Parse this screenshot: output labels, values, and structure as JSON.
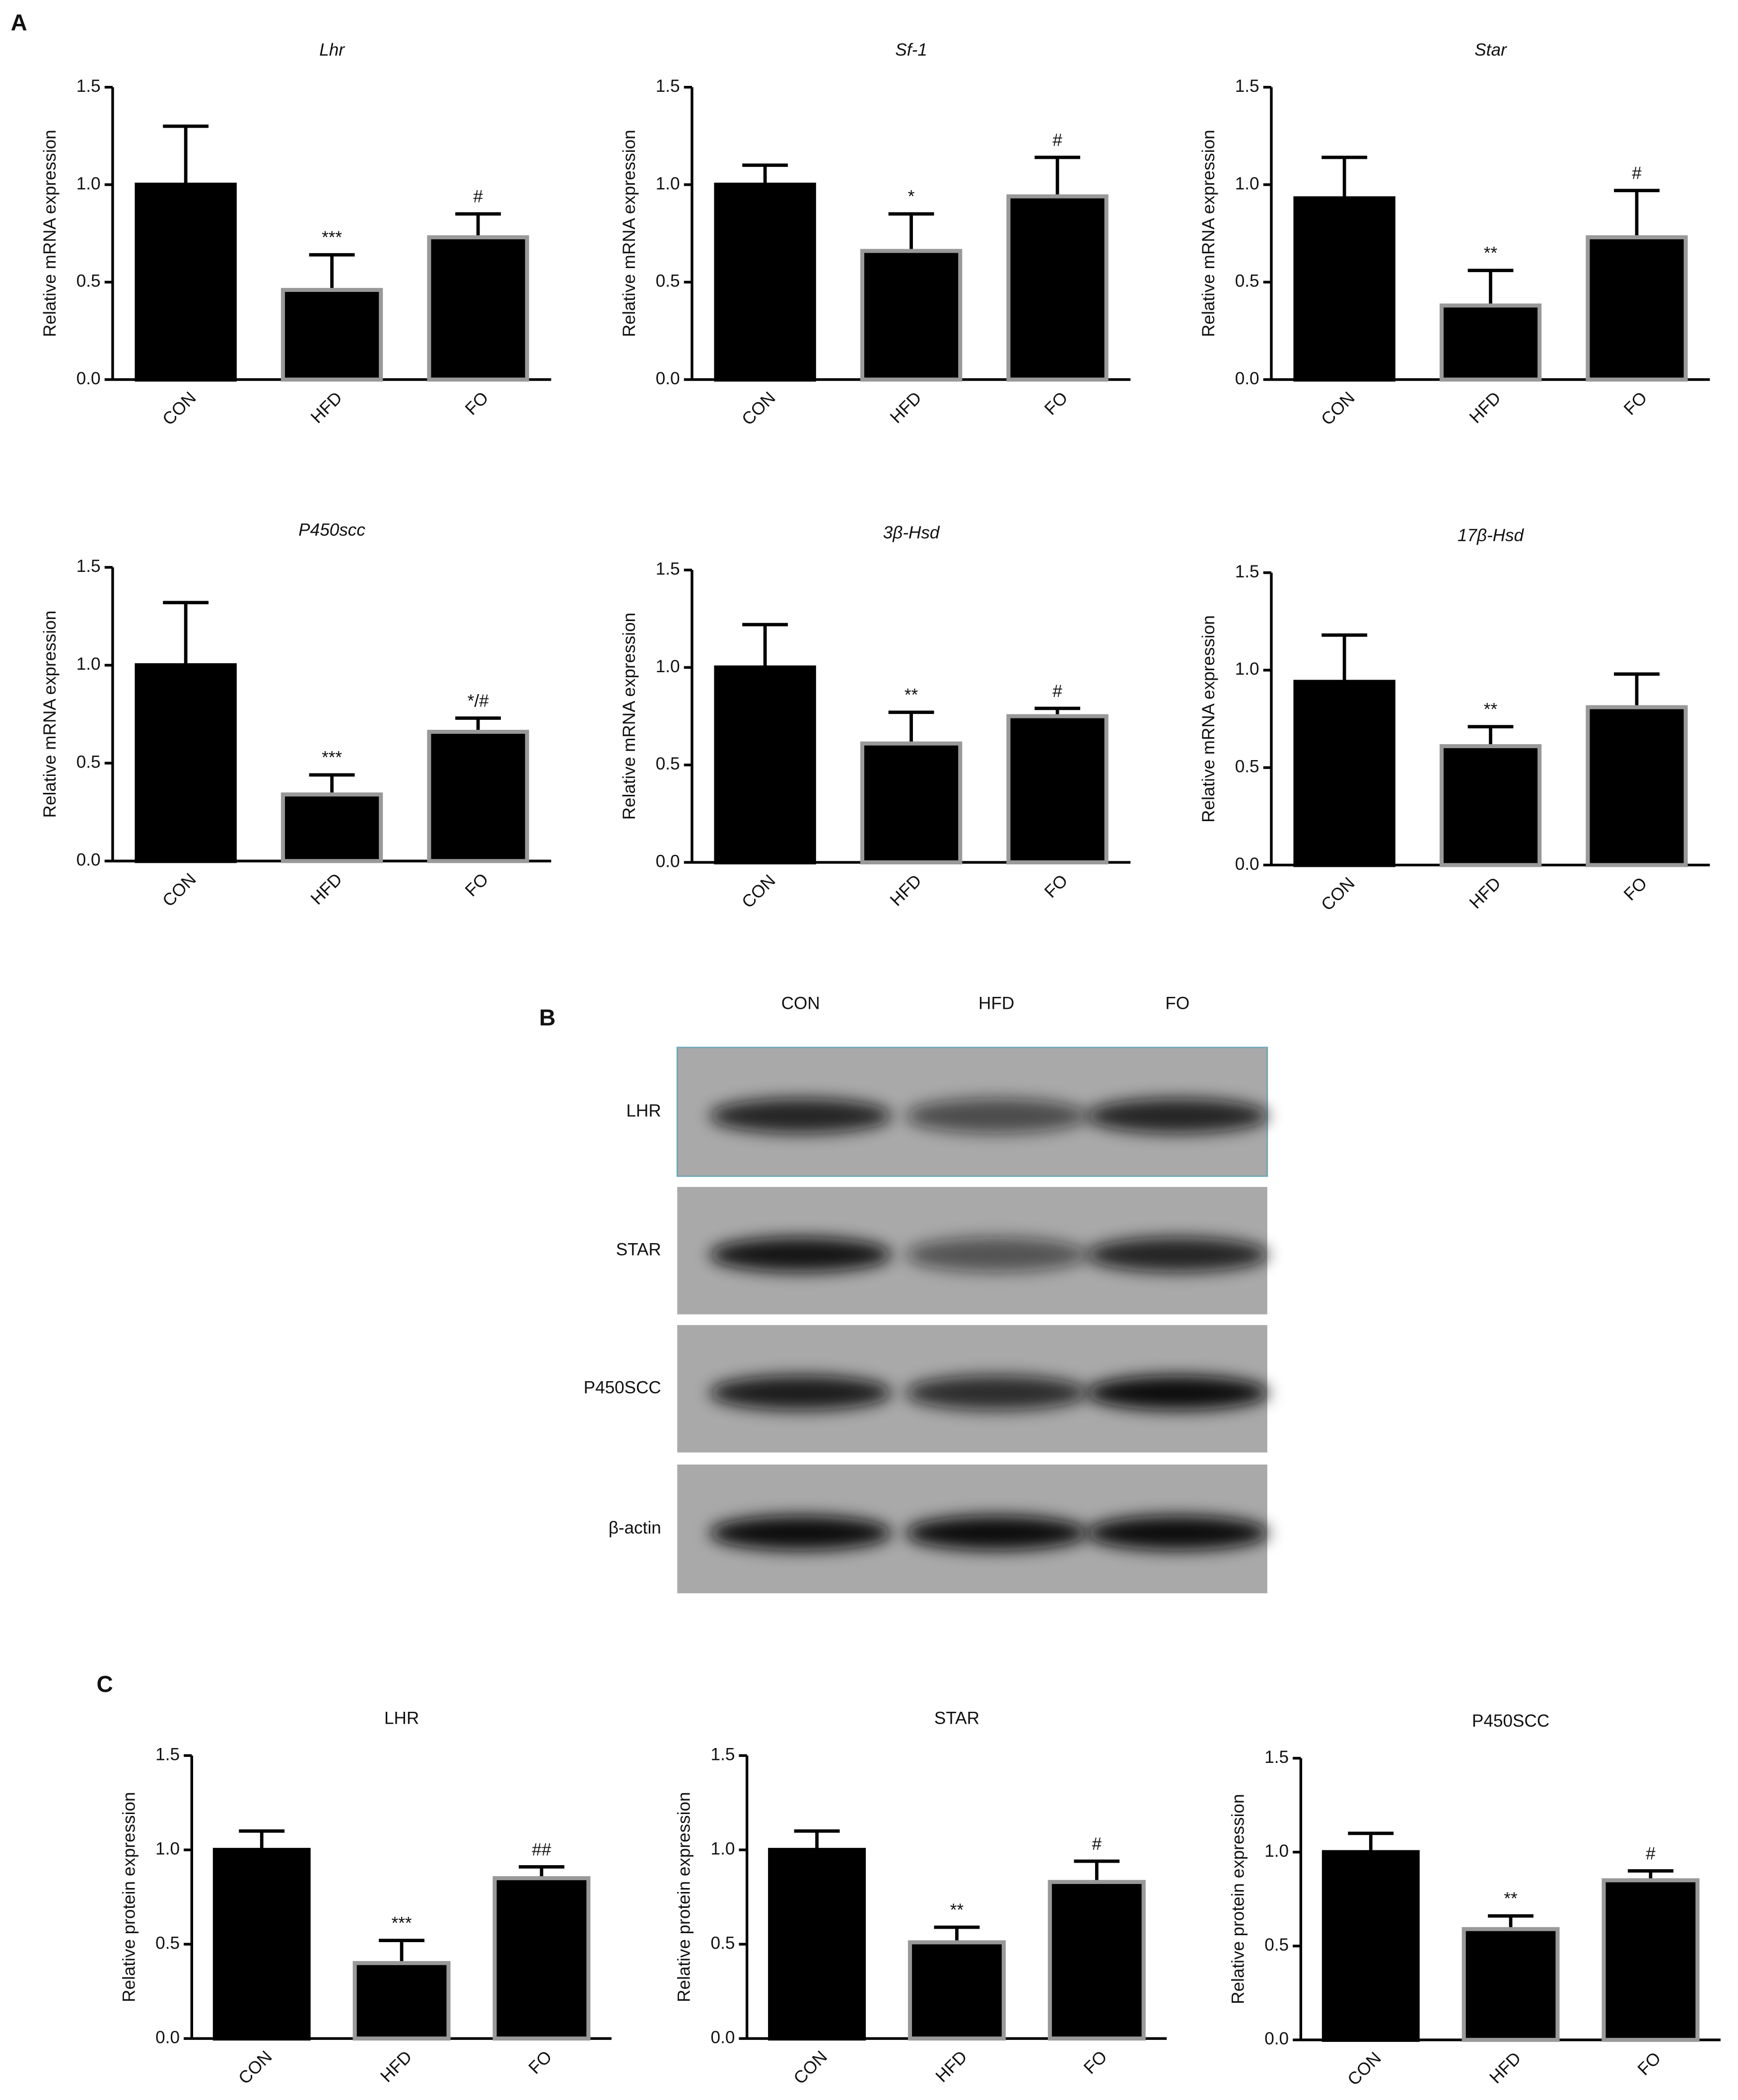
{
  "panels": [
    "A",
    "B",
    "C"
  ],
  "blot": {
    "lanes": [
      "CON",
      "HFD",
      "FO"
    ],
    "proteins": [
      "LHR",
      "STAR",
      "P450SCC",
      "β-actin"
    ]
  },
  "chart_data": [
    {
      "type": "bar",
      "title": "Lhr",
      "title_style": "italic",
      "ylabel": "Relative mRNA expression",
      "categories": [
        "CON",
        "HFD",
        "FO"
      ],
      "values": [
        1.0,
        0.46,
        0.73
      ],
      "errors": [
        0.3,
        0.18,
        0.12
      ],
      "annotations": [
        null,
        "***",
        "#"
      ],
      "color": "#000000",
      "edgecolors": [
        "#000000",
        "#999999",
        "#999999"
      ],
      "ylim": [
        0,
        1.5
      ],
      "yticks": [
        {
          "value": 0,
          "label": "0.0"
        },
        0.5,
        {
          "value": 1,
          "label": "1.0"
        },
        1.5
      ]
    },
    {
      "type": "bar",
      "title": "Sf-1",
      "title_style": "italic",
      "ylabel": "Relative mRNA expression",
      "categories": [
        "CON",
        "HFD",
        "FO"
      ],
      "values": [
        1.0,
        0.66,
        0.94
      ],
      "errors": [
        0.1,
        0.19,
        0.2
      ],
      "annotations": [
        null,
        "*",
        "#"
      ],
      "color": "#000000",
      "edgecolors": [
        "#000000",
        "#999999",
        "#999999"
      ],
      "ylim": [
        0,
        1.5
      ],
      "yticks": [
        {
          "value": 0,
          "label": "0.0"
        },
        0.5,
        {
          "value": 1,
          "label": "1.0"
        },
        1.5
      ]
    },
    {
      "type": "bar",
      "title": "Star",
      "title_style": "italic",
      "ylabel": "Relative mRNA expression",
      "categories": [
        "CON",
        "HFD",
        "FO"
      ],
      "values": [
        0.93,
        0.38,
        0.73
      ],
      "errors": [
        0.21,
        0.18,
        0.24
      ],
      "annotations": [
        null,
        "**",
        "#"
      ],
      "color": "#000000",
      "edgecolors": [
        "#000000",
        "#999999",
        "#999999"
      ],
      "ylim": [
        0,
        1.5
      ],
      "yticks": [
        {
          "value": 0,
          "label": "0.0"
        },
        0.5,
        {
          "value": 1,
          "label": "1.0"
        },
        1.5
      ]
    },
    {
      "type": "bar",
      "title": "P450scc",
      "title_style": "italic",
      "ylabel": "Relative mRNA expression",
      "categories": [
        "CON",
        "HFD",
        "FO"
      ],
      "values": [
        1.0,
        0.34,
        0.66
      ],
      "errors": [
        0.32,
        0.1,
        0.07
      ],
      "annotations": [
        null,
        "***",
        "*/#"
      ],
      "color": "#000000",
      "edgecolors": [
        "#000000",
        "#999999",
        "#999999"
      ],
      "ylim": [
        0,
        1.5
      ],
      "yticks": [
        {
          "value": 0,
          "label": "0.0"
        },
        0.5,
        {
          "value": 1,
          "label": "1.0"
        },
        1.5
      ]
    },
    {
      "type": "bar",
      "title": "3β-Hsd",
      "title_style": "italic",
      "ylabel": "Relative mRNA expression",
      "categories": [
        "CON",
        "HFD",
        "FO"
      ],
      "values": [
        1.0,
        0.61,
        0.75
      ],
      "errors": [
        0.22,
        0.16,
        0.04
      ],
      "annotations": [
        null,
        "**",
        "#"
      ],
      "color": "#000000",
      "edgecolors": [
        "#000000",
        "#999999",
        "#999999"
      ],
      "ylim": [
        0,
        1.5
      ],
      "yticks": [
        {
          "value": 0,
          "label": "0.0"
        },
        0.5,
        {
          "value": 1,
          "label": "1.0"
        },
        1.5
      ]
    },
    {
      "type": "bar",
      "title": "17β-Hsd",
      "title_style": "italic",
      "ylabel": "Relative mRNA expression",
      "categories": [
        "CON",
        "HFD",
        "FO"
      ],
      "values": [
        0.94,
        0.61,
        0.81
      ],
      "errors": [
        0.24,
        0.1,
        0.17
      ],
      "annotations": [
        null,
        "**",
        null
      ],
      "color": "#000000",
      "edgecolors": [
        "#000000",
        "#999999",
        "#999999"
      ],
      "ylim": [
        0,
        1.5
      ],
      "yticks": [
        {
          "value": 0,
          "label": "0.0"
        },
        0.5,
        {
          "value": 1,
          "label": "1.0"
        },
        1.5
      ]
    },
    {
      "type": "bar",
      "title": "LHR",
      "title_style": "normal",
      "ylabel": "Relative protein expression",
      "categories": [
        "CON",
        "HFD",
        "FO"
      ],
      "values": [
        1.0,
        0.4,
        0.85
      ],
      "errors": [
        0.1,
        0.12,
        0.06
      ],
      "annotations": [
        null,
        "***",
        "##"
      ],
      "color": "#000000",
      "edgecolors": [
        "#000000",
        "#999999",
        "#999999"
      ],
      "ylim": [
        0,
        1.5
      ],
      "yticks": [
        {
          "value": 0,
          "label": "0.0"
        },
        0.5,
        {
          "value": 1,
          "label": "1.0"
        },
        1.5
      ]
    },
    {
      "type": "bar",
      "title": "STAR",
      "title_style": "normal",
      "ylabel": "Relative protein expression",
      "categories": [
        "CON",
        "HFD",
        "FO"
      ],
      "values": [
        1.0,
        0.51,
        0.83
      ],
      "errors": [
        0.1,
        0.08,
        0.11
      ],
      "annotations": [
        null,
        "**",
        "#"
      ],
      "color": "#000000",
      "edgecolors": [
        "#000000",
        "#999999",
        "#999999"
      ],
      "ylim": [
        0,
        1.5
      ],
      "yticks": [
        {
          "value": 0,
          "label": "0.0"
        },
        0.5,
        {
          "value": 1,
          "label": "1.0"
        },
        1.5
      ]
    },
    {
      "type": "bar",
      "title": "P450SCC",
      "title_style": "normal",
      "ylabel": "Relative protein expression",
      "categories": [
        "CON",
        "HFD",
        "FO"
      ],
      "values": [
        1.0,
        0.59,
        0.85
      ],
      "errors": [
        0.1,
        0.07,
        0.05
      ],
      "annotations": [
        null,
        "**",
        "#"
      ],
      "color": "#000000",
      "edgecolors": [
        "#000000",
        "#999999",
        "#999999"
      ],
      "ylim": [
        0,
        1.5
      ],
      "yticks": [
        {
          "value": 0,
          "label": "0.0"
        },
        0.5,
        {
          "value": 1,
          "label": "1.0"
        },
        1.5
      ]
    }
  ]
}
